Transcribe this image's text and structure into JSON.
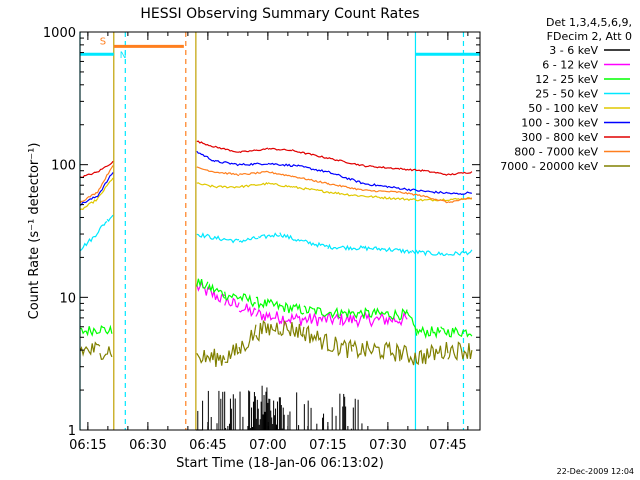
{
  "chart_data": {
    "type": "line",
    "title": "HESSI Observing Summary Count Rates",
    "xlabel": "Start Time (18-Jan-06 06:13:02)",
    "ylabel": "Count Rate (s⁻¹ detector⁻¹)",
    "footer_date": "22-Dec-2009 12:04",
    "legend_header": [
      "Det 1,3,4,5,6,9,",
      "FDecim 2, Att 0"
    ],
    "x_ticks": [
      {
        "label": "06:15",
        "t": 6.25
      },
      {
        "label": "06:30",
        "t": 6.5
      },
      {
        "label": "06:45",
        "t": 6.75
      },
      {
        "label": "07:00",
        "t": 7.0
      },
      {
        "label": "07:15",
        "t": 7.25
      },
      {
        "label": "07:30",
        "t": 7.5
      },
      {
        "label": "07:45",
        "t": 7.75
      }
    ],
    "xlim": [
      6.2172,
      7.8839
    ],
    "ylim": [
      1,
      1000
    ],
    "yscale": "log",
    "y_ticks": [
      {
        "label": "1",
        "v": 1
      },
      {
        "label": "10",
        "v": 10
      },
      {
        "label": "100",
        "v": 100
      },
      {
        "label": "1000",
        "v": 1000
      }
    ],
    "attenuator_bar": {
      "label": "S",
      "t0": 6.358,
      "t1": 6.65,
      "v": 780,
      "color": "#ff7f1e"
    },
    "night_bars": [
      {
        "t0": 6.2172,
        "t1": 6.358,
        "v": 680,
        "label": "N",
        "color": "#00e8ff"
      },
      {
        "t0": 7.615,
        "t1": 7.8839,
        "v": 680,
        "label": "",
        "color": "#00e8ff"
      }
    ],
    "vlines": [
      {
        "t": 6.358,
        "color": "#c0a000",
        "style": "solid"
      },
      {
        "t": 6.406,
        "color": "#00e8ff",
        "style": "dashed"
      },
      {
        "t": 6.658,
        "color": "#ff7f1e",
        "style": "dashed"
      },
      {
        "t": 6.7,
        "color": "#c0a000",
        "style": "solid"
      },
      {
        "t": 7.615,
        "color": "#00e8ff",
        "style": "solid"
      },
      {
        "t": 7.815,
        "color": "#00e8ff",
        "style": "dashed"
      },
      {
        "t": 6.2172,
        "color": "#00e8ff",
        "style": "solid"
      }
    ],
    "series": [
      {
        "name": "3 - 6 keV",
        "color": "#000000",
        "noise": 0,
        "points": [
          [
            6.7,
            1.0
          ],
          [
            6.73,
            1.0
          ]
        ]
      },
      {
        "name": "6 - 12 keV",
        "color": "#ff00ff",
        "noise": 0.25,
        "points": [
          [
            6.704,
            12.0
          ],
          [
            6.75,
            11.0
          ],
          [
            6.82,
            9.5
          ],
          [
            6.88,
            8.5
          ],
          [
            6.95,
            7.5
          ],
          [
            7.05,
            7.0
          ],
          [
            7.15,
            6.8
          ],
          [
            7.3,
            6.8
          ],
          [
            7.45,
            6.8
          ],
          [
            7.58,
            6.8
          ]
        ]
      },
      {
        "name": "12 - 25 keV",
        "color": "#00ff00",
        "noise": 0.2,
        "points": [
          [
            6.2172,
            5.5
          ],
          [
            6.3,
            5.8
          ],
          [
            6.35,
            5.5
          ],
          [
            6.704,
            13.0
          ],
          [
            6.75,
            12.0
          ],
          [
            6.82,
            10.5
          ],
          [
            6.88,
            10.0
          ],
          [
            6.95,
            9.2
          ],
          [
            7.05,
            8.5
          ],
          [
            7.15,
            8.0
          ],
          [
            7.3,
            7.6
          ],
          [
            7.45,
            7.5
          ],
          [
            7.58,
            7.4
          ],
          [
            7.62,
            5.5
          ],
          [
            7.72,
            5.5
          ],
          [
            7.85,
            5.5
          ]
        ]
      },
      {
        "name": "25 - 50 keV",
        "color": "#00e8ff",
        "noise": 0.08,
        "points": [
          [
            6.2172,
            23.0
          ],
          [
            6.27,
            28.0
          ],
          [
            6.33,
            38.0
          ],
          [
            6.355,
            42.0
          ],
          [
            6.704,
            30.0
          ],
          [
            6.78,
            28.0
          ],
          [
            6.88,
            26.5
          ],
          [
            6.96,
            28.0
          ],
          [
            7.05,
            30.0
          ],
          [
            7.12,
            27.0
          ],
          [
            7.25,
            24.0
          ],
          [
            7.4,
            23.5
          ],
          [
            7.5,
            23.0
          ],
          [
            7.6,
            22.0
          ],
          [
            7.75,
            21.0
          ],
          [
            7.85,
            22.0
          ]
        ]
      },
      {
        "name": "50 - 100 keV",
        "color": "#e0c800",
        "noise": 0.04,
        "points": [
          [
            6.2172,
            45.0
          ],
          [
            6.29,
            55.0
          ],
          [
            6.355,
            80.0
          ],
          [
            6.704,
            72.0
          ],
          [
            6.78,
            68.0
          ],
          [
            6.88,
            68.0
          ],
          [
            7.0,
            72.0
          ],
          [
            7.1,
            68.0
          ],
          [
            7.2,
            64.0
          ],
          [
            7.35,
            59.0
          ],
          [
            7.5,
            56.0
          ],
          [
            7.65,
            54.0
          ],
          [
            7.8,
            55.0
          ],
          [
            7.85,
            56.0
          ]
        ]
      },
      {
        "name": "100 - 300 keV",
        "color": "#0000ff",
        "noise": 0.04,
        "points": [
          [
            6.2172,
            50.0
          ],
          [
            6.29,
            58.0
          ],
          [
            6.355,
            88.0
          ],
          [
            6.704,
            125.0
          ],
          [
            6.78,
            106.0
          ],
          [
            6.88,
            100.0
          ],
          [
            7.0,
            102.0
          ],
          [
            7.12,
            98.0
          ],
          [
            7.25,
            88.0
          ],
          [
            7.4,
            72.0
          ],
          [
            7.5,
            68.0
          ],
          [
            7.65,
            63.0
          ],
          [
            7.8,
            60.0
          ],
          [
            7.85,
            62.0
          ]
        ]
      },
      {
        "name": "300 - 800 keV",
        "color": "#e00000",
        "noise": 0.03,
        "points": [
          [
            6.2172,
            80.0
          ],
          [
            6.29,
            88.0
          ],
          [
            6.355,
            105.0
          ],
          [
            6.704,
            150.0
          ],
          [
            6.78,
            136.0
          ],
          [
            6.88,
            124.0
          ],
          [
            6.95,
            128.0
          ],
          [
            7.0,
            132.0
          ],
          [
            7.1,
            128.0
          ],
          [
            7.25,
            112.0
          ],
          [
            7.4,
            98.0
          ],
          [
            7.55,
            93.0
          ],
          [
            7.65,
            90.0
          ],
          [
            7.75,
            84.0
          ],
          [
            7.85,
            88.0
          ]
        ]
      },
      {
        "name": "800 - 7000 keV",
        "color": "#ff7f1e",
        "noise": 0.03,
        "points": [
          [
            6.2172,
            52.0
          ],
          [
            6.29,
            62.0
          ],
          [
            6.355,
            100.0
          ],
          [
            6.704,
            95.0
          ],
          [
            6.78,
            88.0
          ],
          [
            6.88,
            84.0
          ],
          [
            7.0,
            88.0
          ],
          [
            7.1,
            82.0
          ],
          [
            7.25,
            72.0
          ],
          [
            7.4,
            64.0
          ],
          [
            7.55,
            62.0
          ],
          [
            7.65,
            58.0
          ],
          [
            7.75,
            52.0
          ],
          [
            7.85,
            56.0
          ]
        ]
      },
      {
        "name": "7000 - 20000 keV",
        "color": "#808000",
        "noise": 0.35,
        "points": [
          [
            6.2172,
            4.0
          ],
          [
            6.3,
            4.0
          ],
          [
            6.35,
            4.0
          ],
          [
            6.704,
            3.5
          ],
          [
            6.82,
            3.5
          ],
          [
            6.88,
            4.0
          ],
          [
            6.95,
            5.5
          ],
          [
            7.05,
            6.0
          ],
          [
            7.15,
            5.5
          ],
          [
            7.25,
            4.5
          ],
          [
            7.35,
            4.0
          ],
          [
            7.45,
            4.0
          ],
          [
            7.55,
            3.8
          ],
          [
            7.62,
            3.5
          ],
          [
            7.75,
            4.0
          ],
          [
            7.85,
            4.0
          ]
        ]
      }
    ]
  }
}
